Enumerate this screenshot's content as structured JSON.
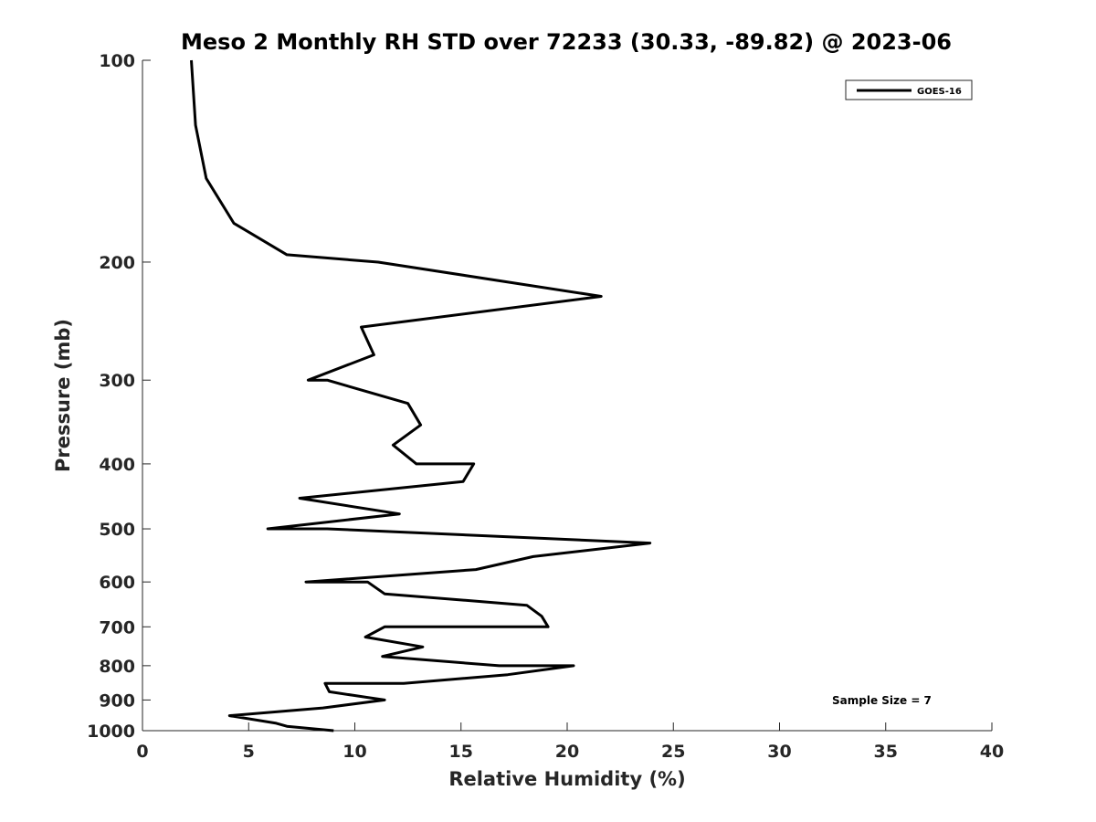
{
  "chart_data": {
    "type": "line",
    "title": "Meso 2 Monthly RH STD over 72233 (30.33, -89.82) @ 2023-06",
    "xlabel": "Relative Humidity (%)",
    "ylabel": "Pressure (mb)",
    "xlim": [
      0,
      40
    ],
    "ylim": [
      100,
      1000
    ],
    "y_scale": "log",
    "y_reversed": true,
    "grid": false,
    "legend_position": "top-right",
    "x_ticks": [
      "0",
      "5",
      "10",
      "15",
      "20",
      "25",
      "30",
      "35",
      "40"
    ],
    "y_ticks": [
      "100",
      "200",
      "300",
      "400",
      "500",
      "600",
      "700",
      "800",
      "900",
      "1000"
    ],
    "series": [
      {
        "name": "GOES-16",
        "color": "#000000",
        "points": [
          [
            2.3,
            100
          ],
          [
            2.5,
            125
          ],
          [
            3.0,
            150
          ],
          [
            4.3,
            175
          ],
          [
            6.8,
            195
          ],
          [
            11.1,
            200
          ],
          [
            21.6,
            225
          ],
          [
            10.3,
            250
          ],
          [
            10.9,
            275
          ],
          [
            7.8,
            300
          ],
          [
            8.7,
            300
          ],
          [
            12.5,
            325
          ],
          [
            13.1,
            350
          ],
          [
            11.8,
            375
          ],
          [
            12.9,
            400
          ],
          [
            15.6,
            400
          ],
          [
            15.1,
            425
          ],
          [
            7.4,
            450
          ],
          [
            12.1,
            475
          ],
          [
            5.9,
            500
          ],
          [
            8.7,
            500
          ],
          [
            23.9,
            525
          ],
          [
            18.4,
            550
          ],
          [
            15.7,
            575
          ],
          [
            7.7,
            600
          ],
          [
            10.6,
            600
          ],
          [
            11.4,
            625
          ],
          [
            18.1,
            650
          ],
          [
            18.8,
            675
          ],
          [
            19.1,
            700
          ],
          [
            11.4,
            700
          ],
          [
            10.5,
            725
          ],
          [
            13.2,
            750
          ],
          [
            11.3,
            775
          ],
          [
            16.8,
            800
          ],
          [
            20.3,
            800
          ],
          [
            17.2,
            825
          ],
          [
            12.3,
            850
          ],
          [
            8.6,
            850
          ],
          [
            8.8,
            875
          ],
          [
            11.4,
            900
          ],
          [
            8.5,
            925
          ],
          [
            4.1,
            950
          ],
          [
            6.3,
            975
          ],
          [
            6.8,
            985
          ],
          [
            9.0,
            1000
          ]
        ]
      }
    ],
    "annotations": [
      "Sample Size = 7"
    ]
  }
}
